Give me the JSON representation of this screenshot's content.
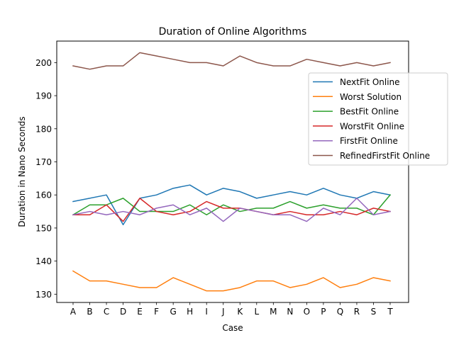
{
  "chart_data": {
    "type": "line",
    "title": "Duration of Online Algorithms",
    "xlabel": "Case",
    "ylabel": "Duration in Nano Seconds",
    "categories": [
      "A",
      "B",
      "C",
      "D",
      "E",
      "F",
      "G",
      "H",
      "I",
      "J",
      "K",
      "L",
      "M",
      "N",
      "O",
      "P",
      "Q",
      "R",
      "S",
      "T"
    ],
    "ylim": [
      127.5,
      206.5
    ],
    "yticks": [
      130,
      140,
      150,
      160,
      170,
      180,
      190,
      200
    ],
    "grid": false,
    "legend_position": "upper right",
    "series": [
      {
        "name": "NextFit Online",
        "color": "#1f77b4",
        "values": [
          158,
          159,
          160,
          151,
          159,
          160,
          162,
          163,
          160,
          162,
          161,
          159,
          160,
          161,
          160,
          162,
          160,
          159,
          161,
          160
        ]
      },
      {
        "name": "Worst Solution",
        "color": "#ff7f0e",
        "values": [
          137,
          134,
          134,
          133,
          132,
          132,
          135,
          133,
          131,
          131,
          132,
          134,
          134,
          132,
          133,
          135,
          132,
          133,
          135,
          134
        ]
      },
      {
        "name": "BestFit Online",
        "color": "#2ca02c",
        "values": [
          154,
          157,
          157,
          159,
          155,
          155,
          155,
          157,
          154,
          157,
          155,
          156,
          156,
          158,
          156,
          157,
          156,
          156,
          154,
          160
        ]
      },
      {
        "name": "WorstFit Online",
        "color": "#d62728",
        "values": [
          154,
          154,
          157,
          152,
          159,
          155,
          154,
          155,
          158,
          156,
          156,
          155,
          154,
          155,
          154,
          154,
          155,
          154,
          156,
          155
        ]
      },
      {
        "name": "FirstFit Online",
        "color": "#9467bd",
        "values": [
          154,
          155,
          154,
          155,
          154,
          156,
          157,
          154,
          156,
          152,
          156,
          155,
          154,
          154,
          152,
          156,
          154,
          159,
          154,
          155
        ]
      },
      {
        "name": "RefinedFirstFit Online",
        "color": "#8c564b",
        "values": [
          199,
          198,
          199,
          199,
          203,
          202,
          201,
          200,
          200,
          199,
          202,
          200,
          199,
          199,
          201,
          200,
          199,
          200,
          199,
          200
        ]
      }
    ]
  }
}
